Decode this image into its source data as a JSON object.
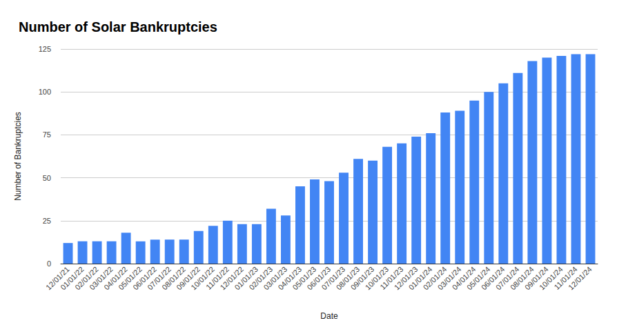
{
  "chart_data": {
    "type": "bar",
    "title": "Number of Solar Bankruptcies",
    "x_label": "Date",
    "y_label": "Number of Bankruptcies",
    "categories": [
      "12/01/21",
      "01/01/22",
      "02/01/22",
      "03/01/22",
      "04/01/22",
      "05/01/22",
      "06/01/22",
      "07/01/22",
      "08/01/22",
      "09/01/22",
      "10/01/22",
      "11/01/22",
      "12/01/22",
      "01/01/23",
      "02/01/23",
      "03/01/23",
      "04/01/23",
      "05/01/23",
      "06/01/23",
      "07/01/23",
      "08/01/23",
      "09/01/23",
      "10/01/23",
      "11/01/23",
      "12/01/23",
      "01/01/24",
      "02/01/24",
      "03/01/24",
      "04/01/24",
      "05/01/24",
      "06/01/24",
      "07/01/24",
      "08/01/24",
      "09/01/24",
      "10/01/24",
      "11/01/24",
      "12/01/24"
    ],
    "values": [
      12,
      13,
      13,
      13,
      18,
      13,
      14,
      14,
      14,
      19,
      22,
      25,
      23,
      23,
      32,
      28,
      45,
      49,
      48,
      53,
      61,
      60,
      68,
      70,
      74,
      76,
      88,
      89,
      95,
      100,
      105,
      111,
      118,
      120,
      121,
      122,
      122
    ],
    "color": "#4285f4",
    "ylim": [
      0,
      125
    ],
    "yticks": [
      0,
      25,
      50,
      75,
      100,
      125
    ],
    "grid": true
  }
}
